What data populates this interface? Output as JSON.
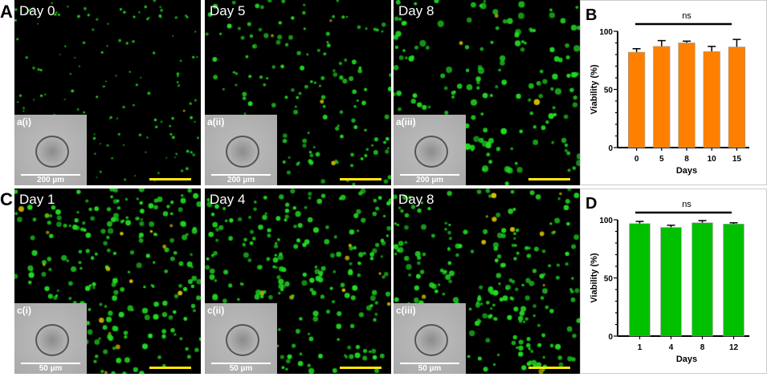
{
  "panels": {
    "A": {
      "letter": "A",
      "images": [
        {
          "day": "Day 0",
          "inset": "a(i)",
          "scale": "200 µm"
        },
        {
          "day": "Day 5",
          "inset": "a(ii)",
          "scale": "200 µm"
        },
        {
          "day": "Day 8",
          "inset": "a(iii)",
          "scale": "200 µm"
        }
      ]
    },
    "C": {
      "letter": "C",
      "images": [
        {
          "day": "Day 1",
          "inset": "c(i)",
          "scale": "50 µm"
        },
        {
          "day": "Day 4",
          "inset": "c(ii)",
          "scale": "50 µm"
        },
        {
          "day": "Day 8",
          "inset": "c(iii)",
          "scale": "50 µm"
        }
      ]
    }
  },
  "colors": {
    "stain": "#22dd22",
    "scalebar": "#ffea00",
    "barB": "#ff8000",
    "barD": "#00c000"
  },
  "chart_data": [
    {
      "letter": "B",
      "type": "bar",
      "xlabel": "Days",
      "ylabel": "Viability (%)",
      "ylim": [
        0,
        100
      ],
      "yticks": [
        "0",
        "50",
        "100"
      ],
      "categories": [
        "0",
        "5",
        "8",
        "10",
        "15"
      ],
      "values": [
        82,
        87,
        90,
        82.5,
        86.5
      ],
      "errors": [
        3,
        5,
        1.5,
        4.5,
        6.5
      ],
      "annotation": "ns",
      "color": "#ff8000"
    },
    {
      "letter": "D",
      "type": "bar",
      "xlabel": "Days",
      "ylabel": "Viability (%)",
      "ylim": [
        0,
        100
      ],
      "yticks": [
        "0",
        "50",
        "100"
      ],
      "categories": [
        "1",
        "4",
        "8",
        "12"
      ],
      "values": [
        96.7,
        93.4,
        97.4,
        96.3
      ],
      "errors": [
        1.9,
        1.9,
        1.9,
        1.1
      ],
      "annotation": "ns",
      "color": "#00c000"
    }
  ]
}
